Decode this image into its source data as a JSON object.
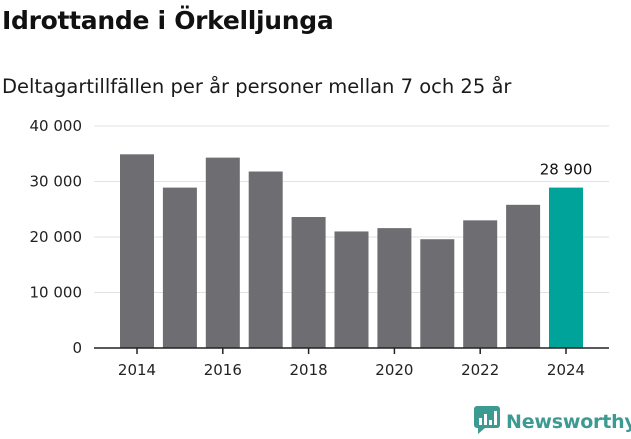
{
  "header": {
    "title": "Idrottande i Örkelljunga",
    "subtitle": "Deltagartillfällen per år personer mellan 7 och 25 år"
  },
  "brand": {
    "name": "Newsworthy"
  },
  "colors": {
    "bar": "#6e6d72",
    "highlight": "#00a399",
    "grid": "#e2e2e2",
    "axis": "#222222"
  },
  "chart_data": {
    "type": "bar",
    "title": "Idrottande i Örkelljunga",
    "subtitle": "Deltagartillfällen per år personer mellan 7 och 25 år",
    "xlabel": "",
    "ylabel": "",
    "categories": [
      "2014",
      "2015",
      "2016",
      "2017",
      "2018",
      "2019",
      "2020",
      "2021",
      "2022",
      "2023",
      "2024"
    ],
    "values": [
      34900,
      28900,
      34300,
      31800,
      23600,
      21000,
      21600,
      19600,
      23000,
      25800,
      28900
    ],
    "ylim": [
      0,
      40000
    ],
    "yticks": [
      0,
      10000,
      20000,
      30000,
      40000
    ],
    "ytick_labels": [
      "0",
      "10 000",
      "20 000",
      "30 000",
      "40 000"
    ],
    "xtick_labels": [
      "2014",
      "2016",
      "2018",
      "2020",
      "2022",
      "2024"
    ],
    "highlight_category": "2024",
    "annotations": [
      {
        "category": "2024",
        "label": "28 900"
      }
    ],
    "grid": true,
    "legend": "none"
  }
}
